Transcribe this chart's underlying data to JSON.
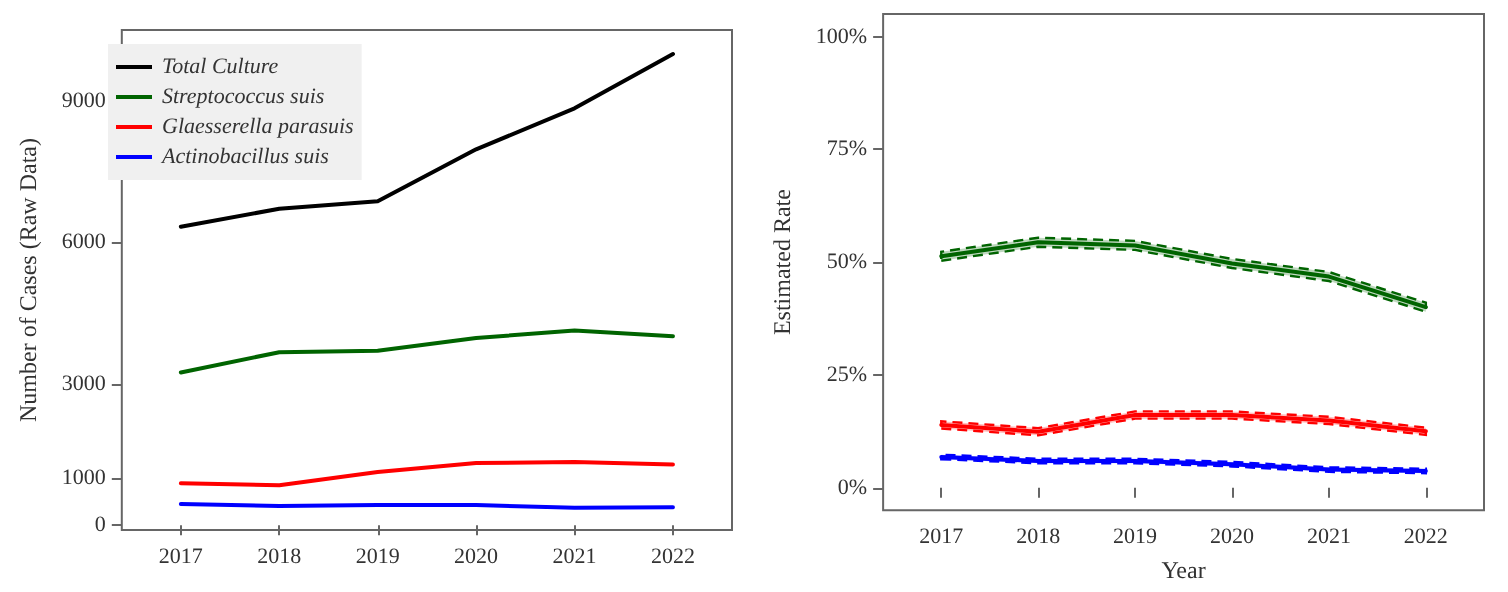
{
  "chart_data": [
    {
      "type": "line",
      "ylabel": "Number of Cases (Raw Data)",
      "x": [
        2017,
        2018,
        2019,
        2020,
        2021,
        2022
      ],
      "xlim": [
        2016.4,
        2022.6
      ],
      "xticks": [
        2017,
        2018,
        2019,
        2020,
        2021,
        2022
      ],
      "ylim": [
        -100,
        10500
      ],
      "yticks": [
        0,
        1000,
        3000,
        6000,
        9000
      ],
      "legend": "top left",
      "series": [
        {
          "name": "Total Culture",
          "color": "#000000",
          "values": [
            6330,
            6710,
            6870,
            7970,
            8840,
            9990
          ]
        },
        {
          "name": "Streptococcus suis",
          "color": "#006400",
          "values": [
            3240,
            3670,
            3700,
            3970,
            4130,
            4010
          ]
        },
        {
          "name": "Glaesserella parasuis",
          "color": "#ff0000",
          "values": [
            890,
            850,
            1130,
            1320,
            1340,
            1290
          ]
        },
        {
          "name": "Actinobacillus suis",
          "color": "#0000ff",
          "values": [
            450,
            410,
            430,
            430,
            370,
            380
          ]
        }
      ]
    },
    {
      "type": "line",
      "xlabel": "Year",
      "ylabel": "Estimated Rate",
      "x": [
        2017,
        2018,
        2019,
        2020,
        2021,
        2022
      ],
      "xlim": [
        2016.4,
        2022.6
      ],
      "xticks": [
        2017,
        2018,
        2019,
        2020,
        2021,
        2022
      ],
      "ylim": [
        -5,
        105
      ],
      "yticks": [
        {
          "value": 0,
          "label": "0%"
        },
        {
          "value": 25,
          "label": "25%"
        },
        {
          "value": 50,
          "label": "50%"
        },
        {
          "value": 75,
          "label": "75%"
        },
        {
          "value": 100,
          "label": "100%"
        }
      ],
      "series": [
        {
          "color": "#006400",
          "values": [
            51.3,
            54.4,
            53.7,
            49.7,
            46.8,
            40.0
          ],
          "lower": [
            50.3,
            53.4,
            52.7,
            48.7,
            45.8,
            39.0
          ],
          "upper": [
            52.3,
            55.4,
            54.7,
            50.7,
            47.8,
            41.0
          ]
        },
        {
          "color": "#ff0000",
          "values": [
            13.9,
            12.4,
            16.1,
            16.1,
            14.9,
            12.5
          ],
          "lower": [
            13.1,
            11.6,
            15.3,
            15.3,
            14.1,
            11.7
          ],
          "upper": [
            14.7,
            13.2,
            16.9,
            16.9,
            15.7,
            13.3
          ]
        },
        {
          "color": "#0000ff",
          "values": [
            6.8,
            5.9,
            5.9,
            5.2,
            4.0,
            3.7
          ],
          "lower": [
            6.3,
            5.4,
            5.4,
            4.7,
            3.5,
            3.2
          ],
          "upper": [
            7.3,
            6.4,
            6.4,
            5.7,
            4.5,
            4.2
          ]
        }
      ]
    }
  ]
}
